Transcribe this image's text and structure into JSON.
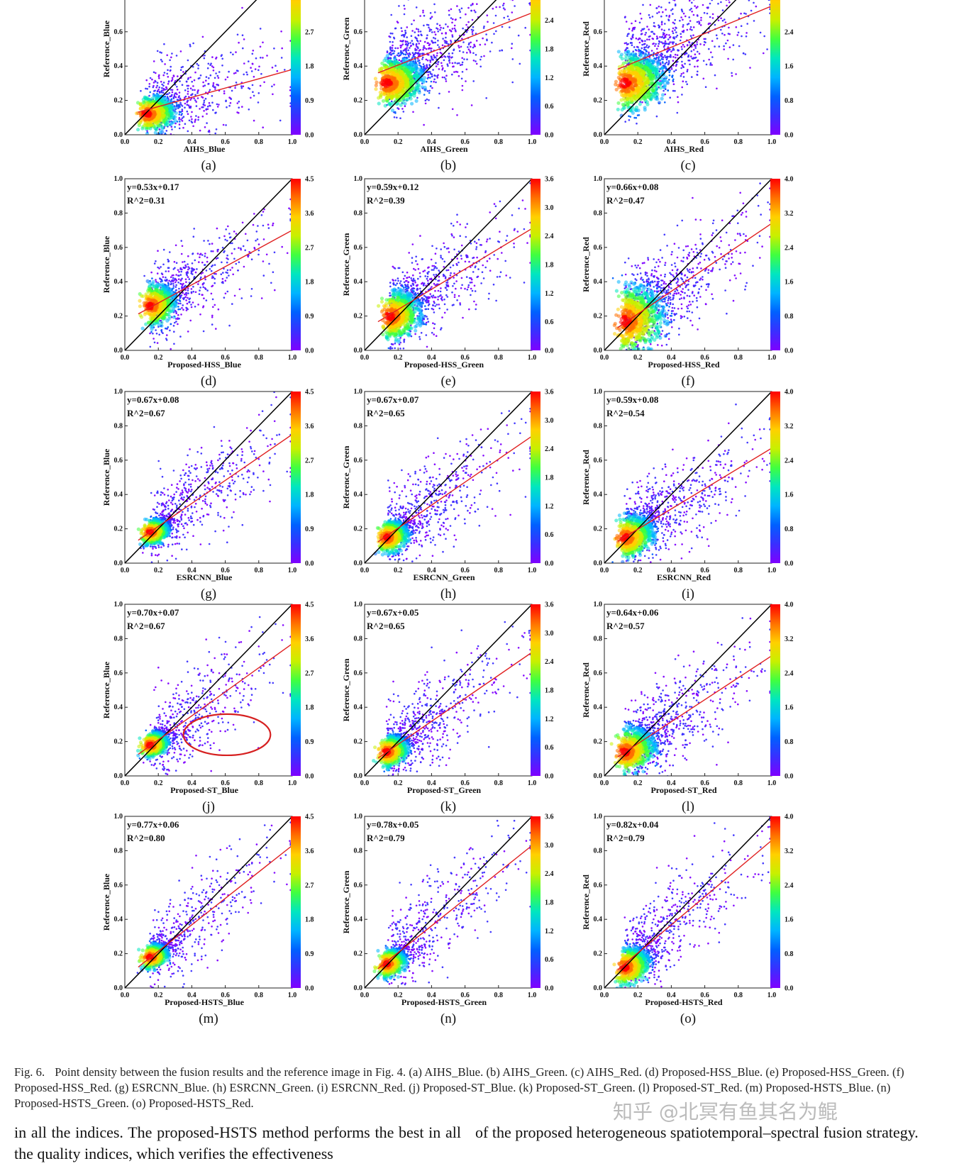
{
  "figure": {
    "caption_prefix": "Fig. 6.",
    "caption": "Point density between the fusion results and the reference image in Fig. 4. (a) AIHS_Blue. (b) AIHS_Green. (c) AIHS_Red. (d) Proposed-HSS_Blue. (e) Proposed-HSS_Green. (f) Proposed-HSS_Red. (g) ESRCNN_Blue. (h) ESRCNN_Green. (i) ESRCNN_Red. (j) Proposed-ST_Blue. (k) Proposed-ST_Green. (l) Proposed-ST_Red. (m) Proposed-HSTS_Blue. (n) Proposed-HSTS_Green. (o) Proposed-HSTS_Red."
  },
  "body_text": {
    "left": "in all the indices. The proposed-HSTS method performs the best in all the quality indices, which verifies the effectiveness",
    "right": "of the proposed heterogeneous spatiotemporal–spectral fusion strategy."
  },
  "watermark": "知乎 @北冥有鱼其名为鲲",
  "colors": {
    "fit_line": "#e02020",
    "identity_line": "#000000",
    "colormap": [
      "#7f00ff",
      "#3a2fff",
      "#0060ff",
      "#00b4ff",
      "#00e6c0",
      "#40ff40",
      "#c8f000",
      "#ffd000",
      "#ff7000",
      "#ff0000"
    ],
    "highlight_ellipse": "#d62020"
  },
  "chart_data": [
    {
      "id": "a",
      "label": "(a)",
      "type": "scatter",
      "xlabel": "AIHS_Blue",
      "ylabel": "Reference_Blue",
      "xlim": [
        0,
        1
      ],
      "ylim": [
        0,
        1
      ],
      "xticks": [
        "0.0",
        "0.2",
        "0.4",
        "0.6",
        "0.8",
        "1.0"
      ],
      "yticks": [
        "0.0",
        "0.2",
        "0.4",
        "0.6"
      ],
      "fit": {
        "slope": 0.27,
        "intercept": 0.11
      },
      "density_center": [
        0.13,
        0.12
      ],
      "spread": [
        0.16,
        0.1
      ],
      "points": 1100,
      "equation": "",
      "r2": "",
      "colorbar": {
        "min": 0,
        "max": 4.5,
        "ticks": [
          "0.0",
          "0.9",
          "1.8",
          "2.7"
        ]
      }
    },
    {
      "id": "b",
      "label": "(b)",
      "type": "scatter",
      "xlabel": "AIHS_Green",
      "ylabel": "Reference_Green",
      "xlim": [
        0,
        1
      ],
      "ylim": [
        0,
        1
      ],
      "xticks": [
        "0.0",
        "0.2",
        "0.4",
        "0.6",
        "0.8",
        "1.0"
      ],
      "yticks": [
        "0.0",
        "0.2",
        "0.4",
        "0.6"
      ],
      "fit": {
        "slope": 0.38,
        "intercept": 0.33
      },
      "density_center": [
        0.13,
        0.3
      ],
      "spread": [
        0.2,
        0.14
      ],
      "points": 1500,
      "equation": "",
      "r2": "",
      "colorbar": {
        "min": 0,
        "max": 3.6,
        "ticks": [
          "0.0",
          "0.6",
          "1.2",
          "1.8",
          "2.4"
        ]
      }
    },
    {
      "id": "c",
      "label": "(c)",
      "type": "scatter",
      "xlabel": "AIHS_Red",
      "ylabel": "Reference_Red",
      "xlim": [
        0,
        1
      ],
      "ylim": [
        0,
        1
      ],
      "xticks": [
        "0.0",
        "0.2",
        "0.4",
        "0.6",
        "0.8",
        "1.0"
      ],
      "yticks": [
        "0.0",
        "0.2",
        "0.4",
        "0.6"
      ],
      "fit": {
        "slope": 0.4,
        "intercept": 0.35
      },
      "density_center": [
        0.12,
        0.3
      ],
      "spread": [
        0.22,
        0.16
      ],
      "points": 1500,
      "equation": "",
      "r2": "",
      "colorbar": {
        "min": 0,
        "max": 4.0,
        "ticks": [
          "0.0",
          "0.8",
          "1.6",
          "2.4"
        ]
      }
    },
    {
      "id": "d",
      "label": "(d)",
      "type": "scatter",
      "xlabel": "Proposed-HSS_Blue",
      "ylabel": "Reference_Blue",
      "xlim": [
        0,
        1
      ],
      "ylim": [
        0,
        1
      ],
      "xticks": [
        "0.0",
        "0.2",
        "0.4",
        "0.6",
        "0.8",
        "1.0"
      ],
      "yticks": [
        "0.0",
        "0.2",
        "0.4",
        "0.6",
        "0.8",
        "1.0"
      ],
      "fit": {
        "slope": 0.53,
        "intercept": 0.17
      },
      "density_center": [
        0.15,
        0.26
      ],
      "spread": [
        0.14,
        0.12
      ],
      "points": 1100,
      "equation": "y=0.53x+0.17",
      "r2": "R^2=0.31",
      "colorbar": {
        "min": 0,
        "max": 4.5,
        "ticks": [
          "0.0",
          "0.9",
          "1.8",
          "2.7",
          "3.6",
          "4.5"
        ]
      }
    },
    {
      "id": "e",
      "label": "(e)",
      "type": "scatter",
      "xlabel": "Proposed-HSS_Green",
      "ylabel": "Reference_Green",
      "xlim": [
        0,
        1
      ],
      "ylim": [
        0,
        1
      ],
      "xticks": [
        "0.0",
        "0.2",
        "0.4",
        "0.6",
        "0.8",
        "1.0"
      ],
      "yticks": [
        "0.0",
        "0.2",
        "0.4",
        "0.6",
        "0.8",
        "1.0"
      ],
      "fit": {
        "slope": 0.59,
        "intercept": 0.12
      },
      "density_center": [
        0.15,
        0.2
      ],
      "spread": [
        0.17,
        0.14
      ],
      "points": 1300,
      "equation": "y=0.59x+0.12",
      "r2": "R^2=0.39",
      "colorbar": {
        "min": 0,
        "max": 3.6,
        "ticks": [
          "0.0",
          "0.6",
          "1.2",
          "1.8",
          "2.4",
          "3.0",
          "3.6"
        ]
      }
    },
    {
      "id": "f",
      "label": "(f)",
      "type": "scatter",
      "xlabel": "Proposed-HSS_Red",
      "ylabel": "Reference_Red",
      "xlim": [
        0,
        1
      ],
      "ylim": [
        0,
        1
      ],
      "xticks": [
        "0.0",
        "0.2",
        "0.4",
        "0.6",
        "0.8",
        "1.0"
      ],
      "yticks": [
        "0.0",
        "0.2",
        "0.4",
        "0.6",
        "0.8",
        "1.0"
      ],
      "fit": {
        "slope": 0.66,
        "intercept": 0.08
      },
      "density_center": [
        0.12,
        0.17
      ],
      "spread": [
        0.22,
        0.2
      ],
      "points": 1500,
      "equation": "y=0.66x+0.08",
      "r2": "R^2=0.47",
      "colorbar": {
        "min": 0,
        "max": 4.0,
        "ticks": [
          "0.0",
          "0.8",
          "1.6",
          "2.4",
          "3.2",
          "4.0"
        ]
      }
    },
    {
      "id": "g",
      "label": "(g)",
      "type": "scatter",
      "xlabel": "ESRCNN_Blue",
      "ylabel": "Reference_Blue",
      "xlim": [
        0,
        1
      ],
      "ylim": [
        0,
        1
      ],
      "xticks": [
        "0.0",
        "0.2",
        "0.4",
        "0.6",
        "0.8",
        "1.0"
      ],
      "yticks": [
        "0.0",
        "0.2",
        "0.4",
        "0.6",
        "0.8",
        "1.0"
      ],
      "fit": {
        "slope": 0.67,
        "intercept": 0.08
      },
      "density_center": [
        0.15,
        0.18
      ],
      "spread": [
        0.1,
        0.07
      ],
      "points": 1100,
      "equation": "y=0.67x+0.08",
      "r2": "R^2=0.67",
      "colorbar": {
        "min": 0,
        "max": 4.5,
        "ticks": [
          "0.0",
          "0.9",
          "1.8",
          "2.7",
          "3.6",
          "4.5"
        ]
      }
    },
    {
      "id": "h",
      "label": "(h)",
      "type": "scatter",
      "xlabel": "ESRCNN_Green",
      "ylabel": "Reference_Green",
      "xlim": [
        0,
        1
      ],
      "ylim": [
        0,
        1
      ],
      "xticks": [
        "0.0",
        "0.2",
        "0.4",
        "0.6",
        "0.8",
        "1.0"
      ],
      "yticks": [
        "0.0",
        "0.2",
        "0.4",
        "0.6",
        "0.8",
        "1.0"
      ],
      "fit": {
        "slope": 0.67,
        "intercept": 0.07
      },
      "density_center": [
        0.13,
        0.15
      ],
      "spread": [
        0.12,
        0.09
      ],
      "points": 1200,
      "equation": "y=0.67x+0.07",
      "r2": "R^2=0.65",
      "colorbar": {
        "min": 0,
        "max": 3.6,
        "ticks": [
          "0.0",
          "0.6",
          "1.2",
          "1.8",
          "2.4",
          "3.0",
          "3.6"
        ]
      }
    },
    {
      "id": "i",
      "label": "(i)",
      "type": "scatter",
      "xlabel": "ESRCNN_Red",
      "ylabel": "Reference_Red",
      "xlim": [
        0,
        1
      ],
      "ylim": [
        0,
        1
      ],
      "xticks": [
        "0.0",
        "0.2",
        "0.4",
        "0.6",
        "0.8",
        "1.0"
      ],
      "yticks": [
        "0.0",
        "0.2",
        "0.4",
        "0.6",
        "0.8",
        "1.0"
      ],
      "fit": {
        "slope": 0.59,
        "intercept": 0.08
      },
      "density_center": [
        0.12,
        0.15
      ],
      "spread": [
        0.16,
        0.12
      ],
      "points": 1300,
      "equation": "y=0.59x+0.08",
      "r2": "R^2=0.54",
      "colorbar": {
        "min": 0,
        "max": 4.0,
        "ticks": [
          "0.0",
          "0.8",
          "1.6",
          "2.4",
          "3.2",
          "4.0"
        ]
      }
    },
    {
      "id": "j",
      "label": "(j)",
      "type": "scatter",
      "xlabel": "Proposed-ST_Blue",
      "ylabel": "Reference_Blue",
      "xlim": [
        0,
        1
      ],
      "ylim": [
        0,
        1
      ],
      "xticks": [
        "0.0",
        "0.2",
        "0.4",
        "0.6",
        "0.8",
        "1.0"
      ],
      "yticks": [
        "0.0",
        "0.2",
        "0.4",
        "0.6",
        "0.8",
        "1.0"
      ],
      "fit": {
        "slope": 0.7,
        "intercept": 0.07
      },
      "density_center": [
        0.15,
        0.18
      ],
      "spread": [
        0.1,
        0.07
      ],
      "points": 1100,
      "equation": "y=0.70x+0.07",
      "r2": "R^2=0.67",
      "highlight": {
        "cx": 0.61,
        "cy": 0.24,
        "rx": 0.26,
        "ry": 0.12
      },
      "colorbar": {
        "min": 0,
        "max": 4.5,
        "ticks": [
          "0.0",
          "0.9",
          "1.8",
          "2.7",
          "3.6",
          "4.5"
        ]
      }
    },
    {
      "id": "k",
      "label": "(k)",
      "type": "scatter",
      "xlabel": "Proposed-ST_Green",
      "ylabel": "Reference_Green",
      "xlim": [
        0,
        1
      ],
      "ylim": [
        0,
        1
      ],
      "xticks": [
        "0.0",
        "0.2",
        "0.4",
        "0.6",
        "0.8",
        "1.0"
      ],
      "yticks": [
        "0.0",
        "0.2",
        "0.4",
        "0.6",
        "0.8",
        "1.0"
      ],
      "fit": {
        "slope": 0.67,
        "intercept": 0.05
      },
      "density_center": [
        0.13,
        0.14
      ],
      "spread": [
        0.12,
        0.09
      ],
      "points": 1200,
      "equation": "y=0.67x+0.05",
      "r2": "R^2=0.65",
      "colorbar": {
        "min": 0,
        "max": 3.6,
        "ticks": [
          "0.0",
          "0.6",
          "1.2",
          "1.8",
          "2.4",
          "3.0",
          "3.6"
        ]
      }
    },
    {
      "id": "l",
      "label": "(l)",
      "type": "scatter",
      "xlabel": "Proposed-ST_Red",
      "ylabel": "Reference_Red",
      "xlim": [
        0,
        1
      ],
      "ylim": [
        0,
        1
      ],
      "xticks": [
        "0.0",
        "0.2",
        "0.4",
        "0.6",
        "0.8",
        "1.0"
      ],
      "yticks": [
        "0.0",
        "0.2",
        "0.4",
        "0.6",
        "0.8",
        "1.0"
      ],
      "fit": {
        "slope": 0.64,
        "intercept": 0.06
      },
      "density_center": [
        0.12,
        0.14
      ],
      "spread": [
        0.17,
        0.13
      ],
      "points": 1300,
      "equation": "y=0.64x+0.06",
      "r2": "R^2=0.57",
      "colorbar": {
        "min": 0,
        "max": 4.0,
        "ticks": [
          "0.0",
          "0.8",
          "1.6",
          "2.4",
          "3.2",
          "4.0"
        ]
      }
    },
    {
      "id": "m",
      "label": "(m)",
      "type": "scatter",
      "xlabel": "Proposed-HSTS_Blue",
      "ylabel": "Reference_Blue",
      "xlim": [
        0,
        1
      ],
      "ylim": [
        0,
        1
      ],
      "xticks": [
        "0.0",
        "0.2",
        "0.4",
        "0.6",
        "0.8",
        "1.0"
      ],
      "yticks": [
        "0.0",
        "0.2",
        "0.4",
        "0.6",
        "0.8",
        "1.0"
      ],
      "fit": {
        "slope": 0.77,
        "intercept": 0.06
      },
      "density_center": [
        0.15,
        0.18
      ],
      "spread": [
        0.1,
        0.07
      ],
      "points": 1000,
      "equation": "y=0.77x+0.06",
      "r2": "R^2=0.80",
      "colorbar": {
        "min": 0,
        "max": 4.5,
        "ticks": [
          "0.0",
          "0.9",
          "1.8",
          "2.7",
          "3.6",
          "4.5"
        ]
      }
    },
    {
      "id": "n",
      "label": "(n)",
      "type": "scatter",
      "xlabel": "Proposed-HSTS_Green",
      "ylabel": "Reference_Green",
      "xlim": [
        0,
        1
      ],
      "ylim": [
        0,
        1
      ],
      "xticks": [
        "0.0",
        "0.2",
        "0.4",
        "0.6",
        "0.8",
        "1.0"
      ],
      "yticks": [
        "0.0",
        "0.2",
        "0.4",
        "0.6",
        "0.8",
        "1.0"
      ],
      "fit": {
        "slope": 0.78,
        "intercept": 0.05
      },
      "density_center": [
        0.13,
        0.14
      ],
      "spread": [
        0.11,
        0.08
      ],
      "points": 1100,
      "equation": "y=0.78x+0.05",
      "r2": "R^2=0.79",
      "colorbar": {
        "min": 0,
        "max": 3.6,
        "ticks": [
          "0.0",
          "0.6",
          "1.2",
          "1.8",
          "2.4",
          "3.0",
          "3.6"
        ]
      }
    },
    {
      "id": "o",
      "label": "(o)",
      "type": "scatter",
      "xlabel": "Proposed-HSTS_Red",
      "ylabel": "Reference_Red",
      "xlim": [
        0,
        1
      ],
      "ylim": [
        0,
        1
      ],
      "xticks": [
        "0.0",
        "0.2",
        "0.4",
        "0.6",
        "0.8",
        "1.0"
      ],
      "yticks": [
        "0.0",
        "0.2",
        "0.4",
        "0.6",
        "0.8",
        "1.0"
      ],
      "fit": {
        "slope": 0.82,
        "intercept": 0.04
      },
      "density_center": [
        0.12,
        0.12
      ],
      "spread": [
        0.14,
        0.11
      ],
      "points": 1200,
      "equation": "y=0.82x+0.04",
      "r2": "R^2=0.79",
      "colorbar": {
        "min": 0,
        "max": 4.0,
        "ticks": [
          "0.0",
          "0.8",
          "1.6",
          "2.4",
          "3.2",
          "4.0"
        ]
      }
    }
  ]
}
